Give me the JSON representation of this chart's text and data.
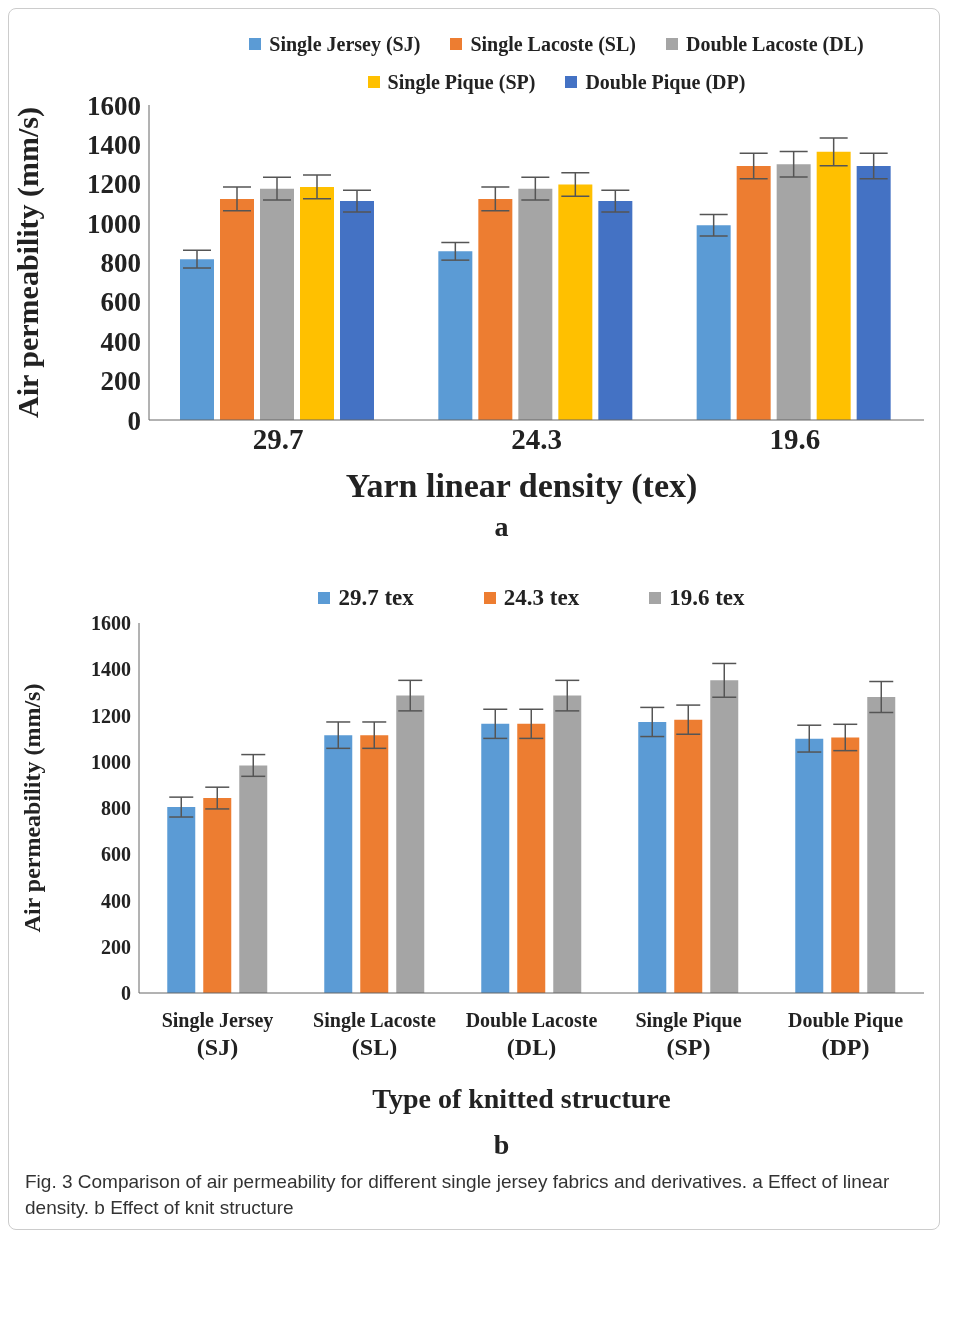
{
  "chart_data": [
    {
      "type": "bar",
      "categories": [
        "29.7",
        "24.3",
        "19.6"
      ],
      "xlabel": "Yarn linear density (tex)",
      "ylabel": "Air permeability (mm/s)",
      "ylim": [
        0,
        1600
      ],
      "yticks": [
        0,
        200,
        400,
        600,
        800,
        1000,
        1200,
        1400,
        1600
      ],
      "grid": false,
      "legend": "top",
      "series": [
        {
          "name": "Single Jersey (SJ)",
          "color": "#5b9bd5",
          "values": [
            817,
            857,
            989
          ],
          "errors": [
            45,
            45,
            55
          ]
        },
        {
          "name": "Single Lacoste (SL)",
          "color": "#ed7d31",
          "values": [
            1123,
            1123,
            1290
          ],
          "errors": [
            60,
            60,
            65
          ]
        },
        {
          "name": "Double Lacoste (DL)",
          "color": "#a5a5a5",
          "values": [
            1175,
            1175,
            1299
          ],
          "errors": [
            58,
            58,
            65
          ]
        },
        {
          "name": "Single Pique (SP)",
          "color": "#ffc000",
          "values": [
            1184,
            1196,
            1362
          ],
          "errors": [
            60,
            60,
            70
          ]
        },
        {
          "name": "Double Pique (DP)",
          "color": "#4472c4",
          "values": [
            1112,
            1112,
            1290
          ],
          "errors": [
            55,
            55,
            65
          ]
        }
      ],
      "annotations": [
        "a"
      ]
    },
    {
      "type": "bar",
      "categories": [
        "Single Jersey (SJ)",
        "Single Lacoste (SL)",
        "Double Lacoste (DL)",
        "Single Pique (SP)",
        "Double Pique (DP)"
      ],
      "xlabel": "Type of knitted structure",
      "ylabel": "Air permeability (mm/s)",
      "ylim": [
        0,
        1600
      ],
      "yticks": [
        0,
        200,
        400,
        600,
        800,
        1000,
        1200,
        1400,
        1600
      ],
      "grid": false,
      "legend": "top",
      "series": [
        {
          "name": "29.7 tex",
          "color": "#5b9bd5",
          "values": [
            804,
            1115,
            1164,
            1172,
            1100
          ],
          "errors": [
            43,
            57,
            63,
            63,
            58
          ]
        },
        {
          "name": "24.3 tex",
          "color": "#ed7d31",
          "values": [
            843,
            1115,
            1164,
            1182,
            1105
          ],
          "errors": [
            47,
            57,
            63,
            63,
            57
          ]
        },
        {
          "name": "19.6 tex",
          "color": "#a5a5a5",
          "values": [
            984,
            1286,
            1286,
            1352,
            1280
          ],
          "errors": [
            47,
            66,
            66,
            73,
            67
          ]
        }
      ],
      "annotations": [
        "b",
        "Fig. 3 Comparison of air permeability for different single jersey fabrics and derivatives. a Effect of linear density. b Effect of knit structure"
      ]
    }
  ]
}
